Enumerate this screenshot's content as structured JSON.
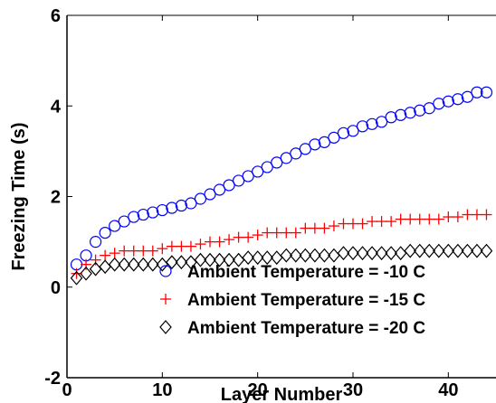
{
  "chart_data": {
    "type": "scatter",
    "title": "",
    "xlabel": "Layer Number",
    "ylabel": "Freezing Time (s)",
    "xlim": [
      0,
      45
    ],
    "ylim": [
      -2,
      6
    ],
    "xticks": [
      0,
      10,
      20,
      30,
      40
    ],
    "yticks": [
      -2,
      0,
      2,
      4,
      6
    ],
    "grid": false,
    "legend_position": "bottom-right",
    "x": [
      1,
      2,
      3,
      4,
      5,
      6,
      7,
      8,
      9,
      10,
      11,
      12,
      13,
      14,
      15,
      16,
      17,
      18,
      19,
      20,
      21,
      22,
      23,
      24,
      25,
      26,
      27,
      28,
      29,
      30,
      31,
      32,
      33,
      34,
      35,
      36,
      37,
      38,
      39,
      40,
      41,
      42,
      43,
      44
    ],
    "series": [
      {
        "name": "Ambient Temperature = -10 C",
        "marker": "circle",
        "color": "#0000ff",
        "values": [
          0.5,
          0.7,
          1.0,
          1.2,
          1.35,
          1.45,
          1.55,
          1.6,
          1.65,
          1.7,
          1.75,
          1.8,
          1.85,
          1.95,
          2.05,
          2.15,
          2.25,
          2.35,
          2.45,
          2.55,
          2.65,
          2.75,
          2.85,
          2.95,
          3.05,
          3.15,
          3.2,
          3.3,
          3.4,
          3.45,
          3.55,
          3.6,
          3.65,
          3.75,
          3.8,
          3.85,
          3.9,
          3.95,
          4.05,
          4.1,
          4.15,
          4.2,
          4.3,
          4.3
        ]
      },
      {
        "name": "Ambient Temperature = -15 C",
        "marker": "plus",
        "color": "#ff0000",
        "values": [
          0.3,
          0.5,
          0.6,
          0.7,
          0.75,
          0.8,
          0.8,
          0.8,
          0.8,
          0.85,
          0.9,
          0.9,
          0.9,
          0.95,
          1.0,
          1.0,
          1.05,
          1.1,
          1.1,
          1.15,
          1.2,
          1.2,
          1.2,
          1.2,
          1.3,
          1.3,
          1.3,
          1.35,
          1.4,
          1.4,
          1.4,
          1.45,
          1.45,
          1.45,
          1.5,
          1.5,
          1.5,
          1.5,
          1.5,
          1.55,
          1.55,
          1.6,
          1.6,
          1.6
        ]
      },
      {
        "name": "Ambient Temperature = -20 C",
        "marker": "diamond",
        "color": "#000000",
        "values": [
          0.2,
          0.3,
          0.4,
          0.45,
          0.5,
          0.5,
          0.5,
          0.5,
          0.5,
          0.5,
          0.55,
          0.55,
          0.55,
          0.6,
          0.6,
          0.6,
          0.6,
          0.6,
          0.65,
          0.65,
          0.65,
          0.65,
          0.7,
          0.7,
          0.7,
          0.7,
          0.7,
          0.7,
          0.75,
          0.75,
          0.75,
          0.75,
          0.75,
          0.75,
          0.75,
          0.8,
          0.8,
          0.8,
          0.8,
          0.8,
          0.8,
          0.8,
          0.8,
          0.8
        ]
      }
    ]
  }
}
